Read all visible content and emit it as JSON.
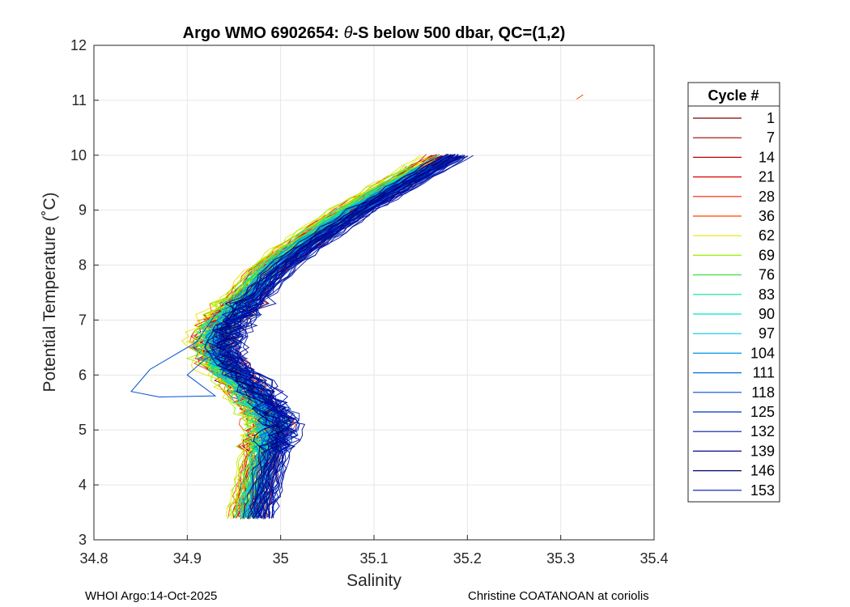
{
  "chart_data": {
    "type": "line",
    "title_prefix": "Argo WMO 6902654: ",
    "title_symbol": "θ",
    "title_suffix": "-S below 500 dbar,  QC=(1,2)",
    "xlabel": "Salinity",
    "ylabel": "Potential Temperature (˚C)",
    "xlim": [
      34.8,
      35.4
    ],
    "ylim": [
      3,
      12
    ],
    "xticks": [
      34.8,
      34.9,
      35,
      35.1,
      35.2,
      35.3,
      35.4
    ],
    "xtick_labels": [
      "34.8",
      "34.9",
      "35",
      "35.1",
      "35.2",
      "35.3",
      "35.4"
    ],
    "yticks": [
      3,
      4,
      5,
      6,
      7,
      8,
      9,
      10,
      11,
      12
    ],
    "ytick_labels": [
      "3",
      "4",
      "5",
      "6",
      "7",
      "8",
      "9",
      "10",
      "11",
      "12"
    ],
    "grid": true,
    "legend": {
      "title": "Cycle #",
      "placement": "outside-right",
      "entries": [
        {
          "label": "1",
          "color": "#800000"
        },
        {
          "label": "7",
          "color": "#a00000"
        },
        {
          "label": "14",
          "color": "#c00000"
        },
        {
          "label": "21",
          "color": "#e00000"
        },
        {
          "label": "28",
          "color": "#ff1a00"
        },
        {
          "label": "36",
          "color": "#ff4500"
        },
        {
          "label": "62",
          "color": "#e6e600"
        },
        {
          "label": "69",
          "color": "#9cf000"
        },
        {
          "label": "76",
          "color": "#40e040"
        },
        {
          "label": "83",
          "color": "#00e890"
        },
        {
          "label": "90",
          "color": "#00e6c8"
        },
        {
          "label": "97",
          "color": "#00c8e6"
        },
        {
          "label": "104",
          "color": "#0096e6"
        },
        {
          "label": "111",
          "color": "#0070dc"
        },
        {
          "label": "118",
          "color": "#0050d0"
        },
        {
          "label": "125",
          "color": "#0030c0"
        },
        {
          "label": "132",
          "color": "#0018a8"
        },
        {
          "label": "139",
          "color": "#000c8c"
        },
        {
          "label": "146",
          "color": "#000070"
        },
        {
          "label": "153",
          "color": "#0010b0"
        }
      ]
    },
    "mean_profile": {
      "temperature": [
        3.4,
        3.6,
        3.8,
        4.0,
        4.2,
        4.4,
        4.6,
        4.8,
        5.0,
        5.2,
        5.4,
        5.6,
        5.8,
        6.0,
        6.2,
        6.4,
        6.6,
        6.8,
        7.0,
        7.2,
        7.4,
        7.6,
        7.8,
        8.0,
        8.2,
        8.4,
        8.6,
        8.8,
        9.0,
        9.2,
        9.4,
        9.6,
        9.8,
        10.0
      ],
      "salinity": [
        34.97,
        34.972,
        34.975,
        34.978,
        34.98,
        34.983,
        34.986,
        34.99,
        34.993,
        34.99,
        34.984,
        34.975,
        34.965,
        34.952,
        34.942,
        34.935,
        34.933,
        34.937,
        34.945,
        34.955,
        34.965,
        34.975,
        34.985,
        34.997,
        35.012,
        35.028,
        35.045,
        35.062,
        35.08,
        35.1,
        35.12,
        35.14,
        35.16,
        35.18
      ]
    },
    "series": [
      {
        "name": "1",
        "salinity_offset": -0.01,
        "max_temperature": 10.2
      },
      {
        "name": "7",
        "salinity_offset": -0.008,
        "max_temperature": 10.1
      },
      {
        "name": "14",
        "salinity_offset": 0.004,
        "max_temperature": 10.2
      },
      {
        "name": "21",
        "salinity_offset": -0.012,
        "max_temperature": 10.0
      },
      {
        "name": "28",
        "salinity_offset": 0.006,
        "max_temperature": 10.2
      },
      {
        "name": "36",
        "salinity_offset": -0.014,
        "max_temperature": 9.8
      },
      {
        "name": "62",
        "salinity_offset": -0.018,
        "max_temperature": 10.2
      },
      {
        "name": "69",
        "salinity_offset": -0.016,
        "max_temperature": 9.9
      },
      {
        "name": "76",
        "salinity_offset": -0.006,
        "max_temperature": 9.9
      },
      {
        "name": "83",
        "salinity_offset": -0.004,
        "max_temperature": 9.7
      },
      {
        "name": "90",
        "salinity_offset": -0.008,
        "max_temperature": 9.8
      },
      {
        "name": "97",
        "salinity_offset": -0.002,
        "max_temperature": 9.9
      },
      {
        "name": "104",
        "salinity_offset": 0.0,
        "max_temperature": 10.0
      },
      {
        "name": "111",
        "salinity_offset": 0.003,
        "max_temperature": 9.9
      },
      {
        "name": "118",
        "salinity_offset": 0.008,
        "max_temperature": 10.3
      },
      {
        "name": "125",
        "salinity_offset": 0.01,
        "max_temperature": 10.1
      },
      {
        "name": "132",
        "salinity_offset": 0.006,
        "max_temperature": 10.0
      },
      {
        "name": "139",
        "salinity_offset": 0.012,
        "max_temperature": 10.1
      },
      {
        "name": "146",
        "salinity_offset": 0.002,
        "max_temperature": 10.1
      },
      {
        "name": "153",
        "salinity_offset": 0.014,
        "max_temperature": 10.0
      }
    ],
    "extra_segments": [
      {
        "name": "36-top",
        "color": "#ff4500",
        "salinity": [
          35.317,
          35.324
        ],
        "temperature": [
          11.02,
          11.1
        ]
      },
      {
        "name": "118-excursion",
        "color": "#0050d0",
        "salinity": [
          34.93,
          34.91,
          34.86,
          34.84,
          34.87,
          34.93,
          34.9,
          34.92,
          34.95
        ],
        "temperature": [
          7.1,
          6.6,
          6.1,
          5.7,
          5.6,
          5.62,
          6.0,
          6.3,
          6.5
        ]
      }
    ]
  },
  "footer": {
    "left": "WHOI Argo:14-Oct-2025",
    "right": "Christine COATANOAN at coriolis"
  }
}
